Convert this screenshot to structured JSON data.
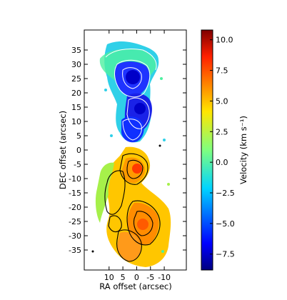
{
  "chart_data": {
    "type": "heatmap",
    "title": "",
    "xlabel": "RA offset (arcsec)",
    "ylabel": "DEC offset (arcsec)",
    "xlim": [
      19,
      -18
    ],
    "ylim": [
      -42,
      42
    ],
    "x_ticks": [
      10,
      5,
      0,
      -5,
      -10
    ],
    "x_tick_labels": [
      "10",
      "5",
      "0",
      "-5",
      "-10"
    ],
    "y_ticks": [
      35,
      30,
      25,
      20,
      15,
      10,
      5,
      0,
      -5,
      -10,
      -15,
      -20,
      -25,
      -30,
      -35
    ],
    "y_tick_labels": [
      "35",
      "30",
      "25",
      "20",
      "15",
      "10",
      "5",
      "0",
      "-5",
      "-10",
      "-15",
      "-20",
      "-25",
      "-30",
      "-35"
    ],
    "colorbar": {
      "label": "Velocity (km s⁻¹)",
      "range": [
        -8.8,
        10.8
      ],
      "ticks": [
        10.0,
        7.5,
        5.0,
        2.5,
        0.0,
        -2.5,
        -5.0,
        -7.5
      ],
      "tick_labels": [
        "10.0",
        "7.5",
        "5.0",
        "2.5",
        "0.0",
        "−2.5",
        "−5.0",
        "−7.5"
      ],
      "colormap": "jet",
      "colors": [
        "#00007f",
        "#0000ff",
        "#007fff",
        "#00ffff",
        "#7fff7f",
        "#ffff00",
        "#ff7f00",
        "#ff0000",
        "#7f0000"
      ]
    },
    "lobes": [
      {
        "name": "",
        "center": [
          1,
          29
        ],
        "velocity": -0.5
      },
      {
        "name": "",
        "center": [
          1,
          27
        ],
        "velocity": -6.5
      },
      {
        "name": "",
        "center": [
          -1,
          17
        ],
        "velocity": -6.0
      },
      {
        "name": "",
        "center": [
          -2,
          9
        ],
        "velocity": -7.0
      },
      {
        "name": "",
        "center": [
          0,
          -8
        ],
        "velocity": 5.0
      },
      {
        "name": "",
        "center": [
          2,
          -15
        ],
        "velocity": 6.5
      },
      {
        "name": "",
        "center": [
          -3,
          -25
        ],
        "velocity": 7.0
      },
      {
        "name": "",
        "center": [
          0,
          -32
        ],
        "velocity": 6.0
      }
    ],
    "grid": false,
    "legend": "none"
  }
}
